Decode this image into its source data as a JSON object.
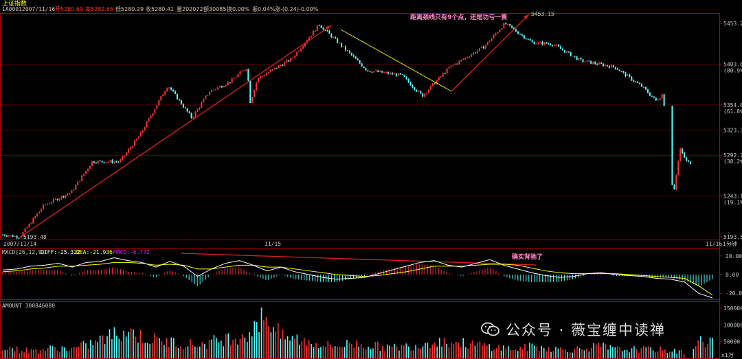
{
  "header": {
    "title": "上证指数",
    "code": "1A0001",
    "date": "2007/11/16",
    "open_label": "开5280.69",
    "high_label": "高5282.65",
    "low_label": "低5280.29",
    "close_label": "收5280.41",
    "volume_label": "量202072",
    "amount_label": "额30085",
    "turnover_label": "换0.00%",
    "amplitude_label": "振0.04%",
    "change_label": "涨-(0.24)-0.00%"
  },
  "colors": {
    "up": "#ff3232",
    "down": "#54ffff",
    "border": "#b00000",
    "annotation": "#ff8cc6",
    "trendline": "#e02020",
    "neckline": "#e8e800",
    "diff_line": "#ffffff",
    "dea_line": "#ffff00",
    "macd_label": "#ff00ff"
  },
  "annotations": {
    "neckline_note": "距离颈线只有9个点，还是功亏一篑",
    "divergence_note": "确实背驰了",
    "peak_label": "5453.15",
    "trough_label": "5193.48"
  },
  "time_axis": {
    "labels": [
      "2007/11/14",
      "11/15",
      "11/16"
    ],
    "unit": "1分钟"
  },
  "macd_panel": {
    "params": "MACD(26,12,9)",
    "diff_label": "DIFF:-25.322",
    "dea_label": "DEA:-21.936",
    "macd_label": "MACD:-6.772"
  },
  "amount_panel": {
    "label": "AMOUNT 300846080",
    "unit_label": "x1万"
  },
  "watermark": {
    "text": "公众号 · 薇宝缠中读禅"
  },
  "chart_data": [
    {
      "type": "candlestick",
      "title": "上证指数 1分钟",
      "x": [
        "2007/11/14",
        "11/15",
        "11/16"
      ],
      "ylim": [
        5193.48,
        5465
      ],
      "y_ticks": [
        {
          "value": 5453.2,
          "label": "5453.2"
        },
        {
          "value": 5403.6,
          "label": "5403.6",
          "pct": "(80.9%)"
        },
        {
          "value": 5354.0,
          "label": "5354.0",
          "pct": "(61.8%)"
        },
        {
          "value": 5323.3,
          "label": "5323.3"
        },
        {
          "value": 5292.7,
          "label": "5292.7",
          "pct": "(38.2%)"
        },
        {
          "value": 5243.1,
          "label": "5243.1",
          "pct": "(19.1%)"
        },
        {
          "value": 5193.5,
          "label": "5193.5"
        }
      ],
      "price_path": [
        [
          0,
          5196
        ],
        [
          0.025,
          5193.48
        ],
        [
          0.06,
          5232
        ],
        [
          0.1,
          5248
        ],
        [
          0.13,
          5285
        ],
        [
          0.17,
          5285
        ],
        [
          0.2,
          5318
        ],
        [
          0.24,
          5378
        ],
        [
          0.275,
          5338
        ],
        [
          0.3,
          5370
        ],
        [
          0.33,
          5382
        ],
        [
          0.355,
          5400
        ],
        [
          0.36,
          5357
        ],
        [
          0.37,
          5386
        ],
        [
          0.42,
          5410
        ],
        [
          0.46,
          5452
        ],
        [
          0.53,
          5396
        ],
        [
          0.58,
          5390
        ],
        [
          0.61,
          5365
        ],
        [
          0.65,
          5400
        ],
        [
          0.7,
          5425
        ],
        [
          0.73,
          5453.15
        ],
        [
          0.77,
          5430
        ],
        [
          0.8,
          5428
        ],
        [
          0.84,
          5408
        ],
        [
          0.89,
          5400
        ],
        [
          0.93,
          5376
        ],
        [
          0.95,
          5359
        ],
        [
          0.96,
          5368
        ],
        [
          0.975,
          5245
        ],
        [
          0.985,
          5300
        ],
        [
          0.995,
          5284
        ]
      ]
    },
    {
      "type": "line",
      "title": "MACD(26,12,9)",
      "ylim": [
        -25,
        25
      ],
      "y_ticks": [
        20.0,
        0.0,
        -20.0
      ],
      "series": [
        {
          "name": "DIFF",
          "values": [
            5,
            6,
            9,
            10,
            12,
            8,
            13,
            14,
            18,
            15,
            13,
            8,
            14,
            9,
            -2,
            6,
            12,
            15,
            10,
            4,
            8,
            3,
            0,
            -3,
            -5,
            -4,
            -3,
            1,
            5,
            9,
            13,
            15,
            10,
            8,
            12,
            16,
            10,
            6,
            2,
            -1,
            -3,
            -2,
            1,
            2,
            0,
            -1,
            -2,
            -4,
            -5,
            -8,
            -20,
            -25
          ]
        },
        {
          "name": "DEA",
          "values": [
            3,
            4,
            6,
            7,
            9,
            9,
            10,
            11,
            13,
            13,
            12,
            10,
            11,
            10,
            6,
            6,
            8,
            10,
            10,
            8,
            8,
            6,
            4,
            2,
            0,
            -1,
            -2,
            -1,
            1,
            3,
            6,
            9,
            9,
            9,
            10,
            11,
            11,
            10,
            7,
            4,
            2,
            1,
            1,
            1,
            1,
            0,
            -1,
            -2,
            -3,
            -4,
            -12,
            -21.9
          ]
        }
      ]
    },
    {
      "type": "bar",
      "title": "AMOUNT",
      "ylim": [
        0,
        160000
      ],
      "y_ticks": [
        150000,
        100000,
        50000
      ],
      "profile": [
        40000,
        30000,
        25000,
        30000,
        35000,
        30000,
        45000,
        60000,
        80000,
        95000,
        70000,
        60000,
        55000,
        50000,
        45000,
        55000,
        65000,
        75000,
        90000,
        140000,
        70000,
        65000,
        55000,
        45000,
        40000,
        50000,
        45000,
        40000,
        35000,
        40000,
        45000,
        60000,
        55000,
        50000,
        45000,
        40000,
        35000,
        30000,
        40000,
        35000,
        30000,
        30000,
        35000,
        40000,
        30000,
        30000,
        30000,
        30000,
        25000,
        20000,
        55000,
        60000
      ]
    }
  ]
}
